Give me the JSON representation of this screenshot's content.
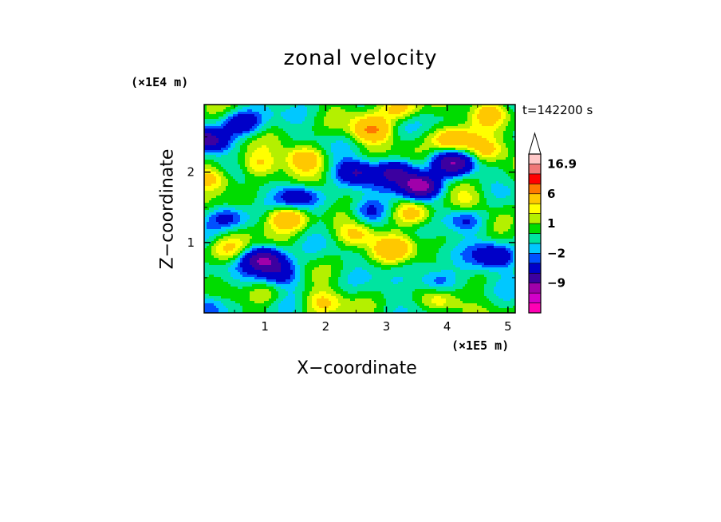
{
  "chart_data": {
    "type": "heatmap",
    "title": "zonal velocity",
    "xlabel": "X−coordinate",
    "ylabel": "Z−coordinate",
    "x_unit_label": "(×1E5 m)",
    "y_unit_label": "(×1E4 m)",
    "time_label": "t=142200 s",
    "xlim": [
      0,
      5.12
    ],
    "ylim": [
      0,
      2.96
    ],
    "xticks": [
      1,
      2,
      3,
      4,
      5
    ],
    "yticks": [
      1,
      2
    ],
    "colorbar": {
      "levels": [
        -15,
        -12,
        -9,
        -6,
        -3,
        -2,
        -1,
        0,
        1,
        2,
        3,
        6,
        9,
        12,
        16.9
      ],
      "colors": [
        "#ff00b4",
        "#d200c8",
        "#a000aa",
        "#3c00a0",
        "#0000c8",
        "#0050ff",
        "#00c8ff",
        "#00e4a0",
        "#00dc00",
        "#b4f000",
        "#ffff00",
        "#ffc800",
        "#ff7800",
        "#ff0000",
        "#f07878",
        "#ffc8c8"
      ],
      "labels": [
        {
          "value": 16.9,
          "text": "16.9"
        },
        {
          "value": 6,
          "text": "6"
        },
        {
          "value": 1,
          "text": "1"
        },
        {
          "value": -2,
          "text": "−2"
        },
        {
          "value": -9,
          "text": "−9"
        }
      ],
      "extend": "max"
    },
    "field_features": [
      {
        "x": 3.55,
        "z": 1.8,
        "value": -12
      },
      {
        "x": 1.0,
        "z": 0.75,
        "value": -9
      },
      {
        "x": 4.1,
        "z": 2.12,
        "value": -8
      },
      {
        "x": 0.1,
        "z": 2.45,
        "value": -7
      },
      {
        "x": 2.5,
        "z": 2.0,
        "value": -6
      },
      {
        "x": 3.15,
        "z": 2.0,
        "value": -6
      },
      {
        "x": 1.55,
        "z": 1.65,
        "value": -5
      },
      {
        "x": 1.25,
        "z": 0.55,
        "value": -5
      },
      {
        "x": 0.6,
        "z": 2.7,
        "value": -5
      },
      {
        "x": 2.7,
        "z": 1.45,
        "value": -4
      },
      {
        "x": 0.4,
        "z": 1.35,
        "value": -4
      },
      {
        "x": 4.3,
        "z": 1.3,
        "value": -4
      },
      {
        "x": 3.85,
        "z": 0.45,
        "value": -4
      },
      {
        "x": 4.8,
        "z": 0.8,
        "value": -6
      },
      {
        "x": 0.05,
        "z": 0.1,
        "value": -4
      },
      {
        "x": 1.35,
        "z": 1.35,
        "value": 6
      },
      {
        "x": 2.75,
        "z": 2.6,
        "value": 6
      },
      {
        "x": 4.1,
        "z": 2.45,
        "value": 6
      },
      {
        "x": 3.45,
        "z": 1.4,
        "value": 5
      },
      {
        "x": 1.65,
        "z": 2.2,
        "value": 5
      },
      {
        "x": 0.15,
        "z": 1.9,
        "value": 4
      },
      {
        "x": 2.5,
        "z": 1.1,
        "value": 4
      },
      {
        "x": 3.1,
        "z": 0.9,
        "value": 4
      },
      {
        "x": 4.65,
        "z": 2.3,
        "value": 4
      },
      {
        "x": 3.25,
        "z": 2.9,
        "value": 4
      },
      {
        "x": 0.4,
        "z": 0.9,
        "value": 3
      },
      {
        "x": 1.95,
        "z": 0.15,
        "value": 3
      },
      {
        "x": 3.9,
        "z": 0.15,
        "value": 3
      },
      {
        "x": 0.9,
        "z": 2.1,
        "value": 3
      },
      {
        "x": 1.0,
        "z": 0.25,
        "value": 2
      },
      {
        "x": 4.4,
        "z": 1.6,
        "value": 2
      },
      {
        "x": 4.7,
        "z": 2.85,
        "value": 4
      }
    ]
  }
}
